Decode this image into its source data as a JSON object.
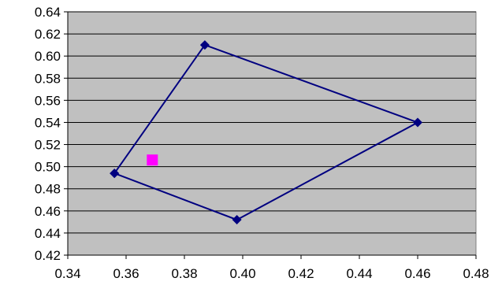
{
  "chart_data": {
    "type": "scatter",
    "title": "",
    "xlabel": "",
    "ylabel": "",
    "xlim": [
      0.34,
      0.48
    ],
    "ylim": [
      0.42,
      0.64
    ],
    "x_ticks": [
      "0.34",
      "0.36",
      "0.38",
      "0.40",
      "0.42",
      "0.44",
      "0.46",
      "0.48"
    ],
    "y_ticks": [
      "0.64",
      "0.62",
      "0.60",
      "0.58",
      "0.56",
      "0.54",
      "0.52",
      "0.50",
      "0.48",
      "0.46",
      "0.44",
      "0.42"
    ],
    "grid": "horizontal",
    "legend": "none",
    "series": [
      {
        "marker": "diamond",
        "line": true,
        "color": "#000080",
        "points": [
          {
            "x": 0.356,
            "y": 0.494
          },
          {
            "x": 0.387,
            "y": 0.61
          },
          {
            "x": 0.46,
            "y": 0.54
          },
          {
            "x": 0.398,
            "y": 0.452
          },
          {
            "x": 0.356,
            "y": 0.494
          }
        ]
      },
      {
        "marker": "square",
        "line": false,
        "color": "#ff00ff",
        "points": [
          {
            "x": 0.369,
            "y": 0.506
          }
        ]
      }
    ],
    "plot_background": "#c0c0c0"
  }
}
